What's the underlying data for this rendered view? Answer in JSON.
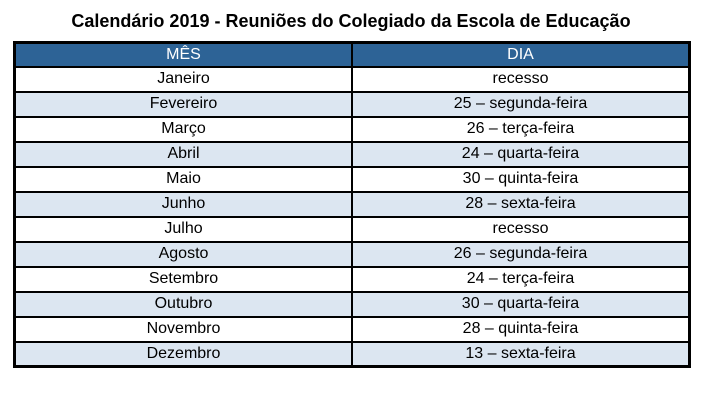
{
  "page": {
    "title": "Calendário 2019 - Reuniões do Colegiado da Escola de Educação"
  },
  "table": {
    "headers": {
      "mes": "MÊS",
      "dia": "DIA"
    },
    "rows": [
      {
        "mes": "Janeiro",
        "dia": "recesso"
      },
      {
        "mes": "Fevereiro",
        "dia": "25 – segunda-feira"
      },
      {
        "mes": "Março",
        "dia": "26 – terça-feira"
      },
      {
        "mes": "Abril",
        "dia": "24 – quarta-feira"
      },
      {
        "mes": "Maio",
        "dia": "30 – quinta-feira"
      },
      {
        "mes": "Junho",
        "dia": "28 – sexta-feira"
      },
      {
        "mes": "Julho",
        "dia": "recesso"
      },
      {
        "mes": "Agosto",
        "dia": "26 – segunda-feira"
      },
      {
        "mes": "Setembro",
        "dia": "24 – terça-feira"
      },
      {
        "mes": "Outubro",
        "dia": "30 – quarta-feira"
      },
      {
        "mes": "Novembro",
        "dia": "28 – quinta-feira"
      },
      {
        "mes": "Dezembro",
        "dia": "13 – sexta-feira"
      }
    ]
  },
  "colors": {
    "header_bg": "#2d6396",
    "header_text": "#ffffff",
    "stripe_bg": "#dce6f1",
    "border": "#000000"
  }
}
